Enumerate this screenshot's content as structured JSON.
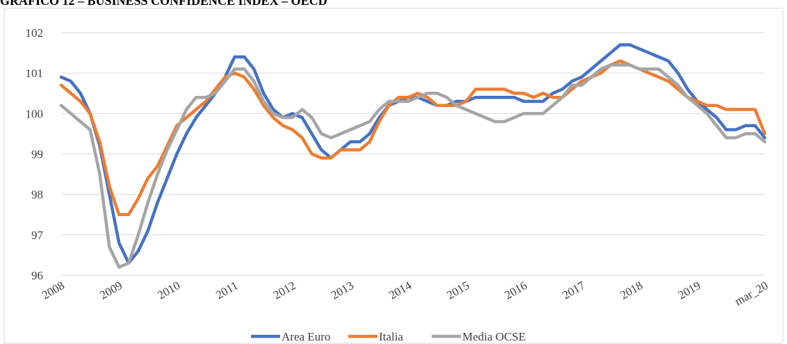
{
  "chart_data": {
    "type": "line",
    "title": "GRAFICO 12 – BUSINESS CONFIDENCE INDEX – OECD",
    "categories": [
      "2008",
      null,
      null,
      null,
      null,
      null,
      "2009",
      null,
      null,
      null,
      null,
      null,
      "2010",
      null,
      null,
      null,
      null,
      null,
      "2011",
      null,
      null,
      null,
      null,
      null,
      "2012",
      null,
      null,
      null,
      null,
      null,
      "2013",
      null,
      null,
      null,
      null,
      null,
      "2014",
      null,
      null,
      null,
      null,
      null,
      "2015",
      null,
      null,
      null,
      null,
      null,
      "2016",
      null,
      null,
      null,
      null,
      null,
      "2017",
      null,
      null,
      null,
      null,
      null,
      "2018",
      null,
      null,
      null,
      null,
      null,
      "2019",
      null,
      null,
      null,
      null,
      null,
      null,
      "mar_20"
    ],
    "series": [
      {
        "name": "Area Euro",
        "color": "#4472c4",
        "values": [
          100.9,
          100.8,
          100.5,
          100.0,
          99.2,
          98.0,
          96.8,
          96.3,
          96.6,
          97.1,
          97.8,
          98.4,
          99.0,
          99.5,
          99.9,
          100.2,
          100.5,
          100.9,
          101.4,
          101.4,
          101.1,
          100.5,
          100.1,
          99.9,
          100.0,
          99.9,
          99.5,
          99.1,
          98.9,
          99.1,
          99.3,
          99.3,
          99.5,
          99.9,
          100.2,
          100.3,
          100.4,
          100.4,
          100.3,
          100.2,
          100.2,
          100.3,
          100.3,
          100.4,
          100.4,
          100.4,
          100.4,
          100.4,
          100.3,
          100.3,
          100.3,
          100.5,
          100.6,
          100.8,
          100.9,
          101.1,
          101.3,
          101.5,
          101.7,
          101.7,
          101.6,
          101.5,
          101.4,
          101.3,
          101.0,
          100.6,
          100.3,
          100.1,
          99.9,
          99.6,
          99.6,
          99.7,
          99.7,
          99.4
        ]
      },
      {
        "name": "Italia",
        "color": "#ed7d31",
        "values": [
          100.7,
          100.5,
          100.3,
          100.0,
          99.3,
          98.2,
          97.5,
          97.5,
          97.9,
          98.4,
          98.7,
          99.2,
          99.7,
          99.9,
          100.1,
          100.3,
          100.6,
          100.9,
          101.0,
          100.9,
          100.6,
          100.2,
          99.9,
          99.7,
          99.6,
          99.4,
          99.0,
          98.9,
          98.9,
          99.1,
          99.1,
          99.1,
          99.3,
          99.8,
          100.2,
          100.4,
          100.4,
          100.5,
          100.4,
          100.2,
          100.2,
          100.2,
          100.3,
          100.6,
          100.6,
          100.6,
          100.6,
          100.5,
          100.5,
          100.4,
          100.5,
          100.4,
          100.4,
          100.6,
          100.8,
          100.9,
          101.0,
          101.2,
          101.3,
          101.2,
          101.1,
          101.0,
          100.9,
          100.8,
          100.6,
          100.4,
          100.3,
          100.2,
          100.2,
          100.1,
          100.1,
          100.1,
          100.1,
          99.5
        ]
      },
      {
        "name": "Media OCSE",
        "color": "#a5a5a5",
        "values": [
          100.2,
          100.0,
          99.8,
          99.6,
          98.5,
          96.7,
          96.2,
          96.3,
          97.0,
          97.8,
          98.5,
          99.1,
          99.6,
          100.1,
          100.4,
          100.4,
          100.5,
          100.8,
          101.1,
          101.1,
          100.8,
          100.3,
          100.0,
          99.9,
          99.9,
          100.1,
          99.9,
          99.5,
          99.4,
          99.5,
          99.6,
          99.7,
          99.8,
          100.1,
          100.3,
          100.3,
          100.3,
          100.4,
          100.5,
          100.5,
          100.4,
          100.2,
          100.1,
          100.0,
          99.9,
          99.8,
          99.8,
          99.9,
          100.0,
          100.0,
          100.0,
          100.2,
          100.4,
          100.7,
          100.7,
          100.9,
          101.1,
          101.2,
          101.2,
          101.2,
          101.1,
          101.1,
          101.1,
          100.9,
          100.7,
          100.4,
          100.2,
          100.0,
          99.7,
          99.4,
          99.4,
          99.5,
          99.5,
          99.3
        ]
      }
    ],
    "ylim": [
      96,
      102
    ],
    "yticks": [
      96,
      97,
      98,
      99,
      100,
      101,
      102
    ],
    "grid": true,
    "legend": "bottom"
  }
}
